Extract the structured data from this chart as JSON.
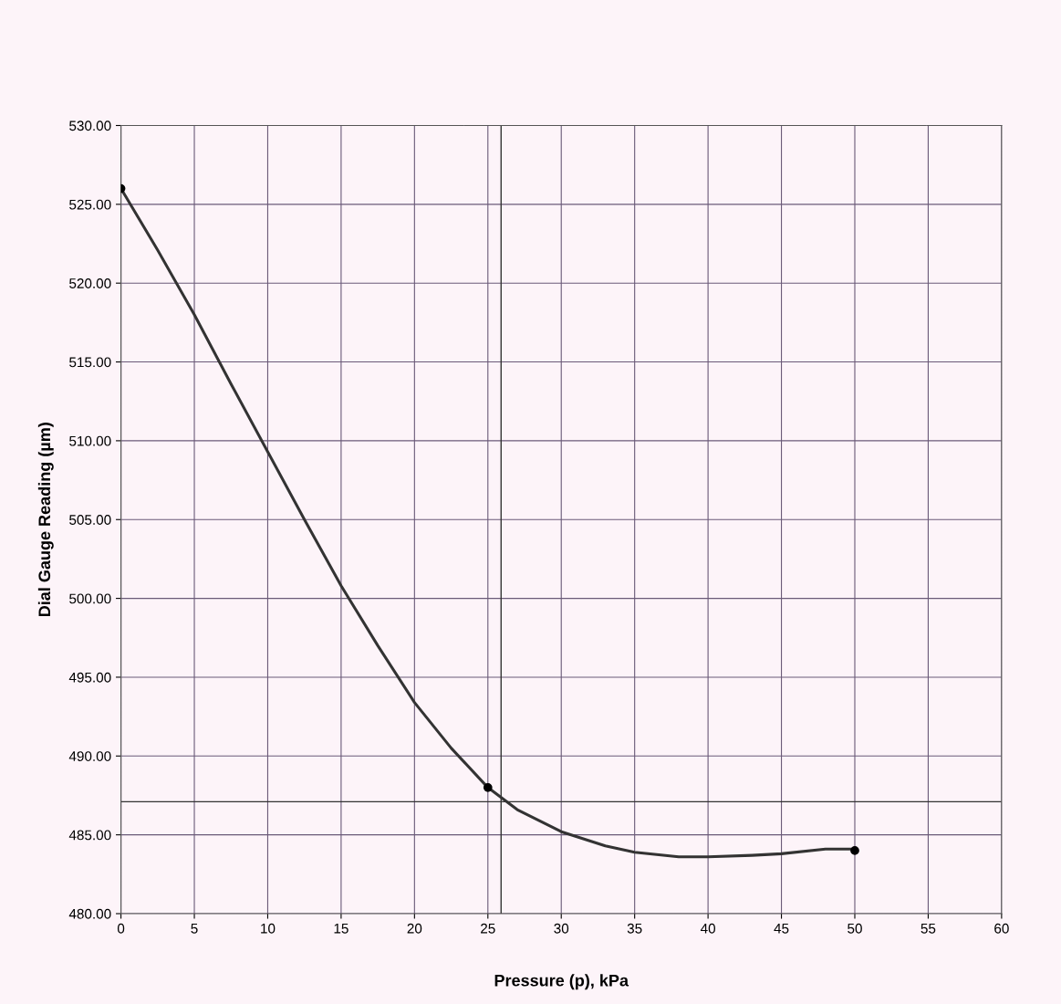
{
  "chart_data": {
    "type": "line",
    "xlabel": "Pressure (p), kPa",
    "ylabel": "Dial Gauge Reading (µm)",
    "x": [
      0,
      25,
      50
    ],
    "series": [
      {
        "color": "#333333",
        "marker": "none",
        "x": [
          0,
          2.5,
          5,
          7.5,
          10,
          12.5,
          15,
          17.5,
          20,
          22.5,
          25,
          27,
          30,
          33,
          35,
          38,
          40,
          43,
          45,
          48,
          50
        ],
        "values": [
          526,
          522.1,
          518,
          513.6,
          509.3,
          505,
          500.8,
          497,
          493.4,
          490.5,
          488,
          486.6,
          485.2,
          484.3,
          483.9,
          483.6,
          483.6,
          483.7,
          483.8,
          484.1,
          484.1
        ]
      },
      {
        "type": "scatter",
        "color": "#000000",
        "values": [
          526,
          488,
          484
        ]
      }
    ],
    "xlim": [
      0,
      60
    ],
    "xticks": [
      0,
      5,
      10,
      15,
      20,
      25,
      30,
      35,
      40,
      45,
      50,
      55,
      60
    ],
    "ylim": [
      480,
      530
    ],
    "yticks": [
      {
        "value": 480,
        "label": "480.00"
      },
      {
        "value": 485,
        "label": "485.00"
      },
      {
        "value": 490,
        "label": "490.00"
      },
      {
        "value": 495,
        "label": "495.00"
      },
      {
        "value": 500,
        "label": "500.00"
      },
      {
        "value": 505,
        "label": "505.00"
      },
      {
        "value": 510,
        "label": "510.00"
      },
      {
        "value": 515,
        "label": "515.00"
      },
      {
        "value": 520,
        "label": "520.00"
      },
      {
        "value": 525,
        "label": "525.00"
      },
      {
        "value": 530,
        "label": "530.00"
      }
    ],
    "ref_lines": [
      {
        "axis": "x",
        "value": 25.9,
        "color": "#333333"
      },
      {
        "axis": "y",
        "value": 487.1,
        "color": "#333333"
      }
    ],
    "grid": true,
    "marker": "circle",
    "line_style": "solid"
  }
}
